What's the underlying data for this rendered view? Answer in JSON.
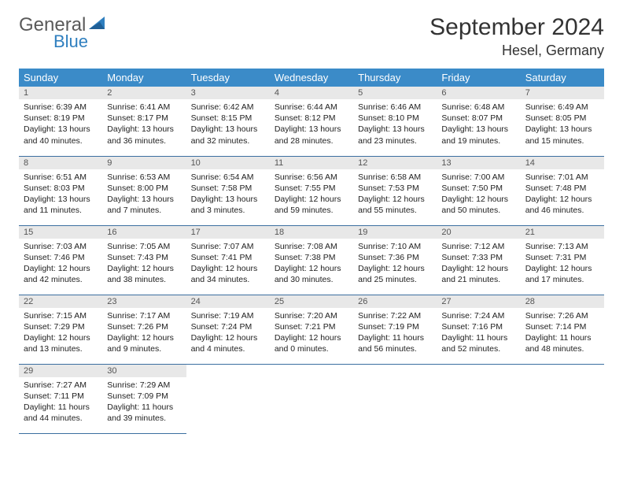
{
  "logo": {
    "word1": "General",
    "word2": "Blue"
  },
  "title": "September 2024",
  "location": "Hesel, Germany",
  "colors": {
    "header_bg": "#3b8bc8",
    "header_text": "#ffffff",
    "daynum_bg": "#e8e8e8",
    "daynum_text": "#555555",
    "row_border": "#3b6fa0",
    "logo_gray": "#5a5a5a",
    "logo_blue": "#2f7fbf"
  },
  "weekdays": [
    "Sunday",
    "Monday",
    "Tuesday",
    "Wednesday",
    "Thursday",
    "Friday",
    "Saturday"
  ],
  "weeks": [
    [
      {
        "n": "1",
        "sr": "Sunrise: 6:39 AM",
        "ss": "Sunset: 8:19 PM",
        "d1": "Daylight: 13 hours",
        "d2": "and 40 minutes."
      },
      {
        "n": "2",
        "sr": "Sunrise: 6:41 AM",
        "ss": "Sunset: 8:17 PM",
        "d1": "Daylight: 13 hours",
        "d2": "and 36 minutes."
      },
      {
        "n": "3",
        "sr": "Sunrise: 6:42 AM",
        "ss": "Sunset: 8:15 PM",
        "d1": "Daylight: 13 hours",
        "d2": "and 32 minutes."
      },
      {
        "n": "4",
        "sr": "Sunrise: 6:44 AM",
        "ss": "Sunset: 8:12 PM",
        "d1": "Daylight: 13 hours",
        "d2": "and 28 minutes."
      },
      {
        "n": "5",
        "sr": "Sunrise: 6:46 AM",
        "ss": "Sunset: 8:10 PM",
        "d1": "Daylight: 13 hours",
        "d2": "and 23 minutes."
      },
      {
        "n": "6",
        "sr": "Sunrise: 6:48 AM",
        "ss": "Sunset: 8:07 PM",
        "d1": "Daylight: 13 hours",
        "d2": "and 19 minutes."
      },
      {
        "n": "7",
        "sr": "Sunrise: 6:49 AM",
        "ss": "Sunset: 8:05 PM",
        "d1": "Daylight: 13 hours",
        "d2": "and 15 minutes."
      }
    ],
    [
      {
        "n": "8",
        "sr": "Sunrise: 6:51 AM",
        "ss": "Sunset: 8:03 PM",
        "d1": "Daylight: 13 hours",
        "d2": "and 11 minutes."
      },
      {
        "n": "9",
        "sr": "Sunrise: 6:53 AM",
        "ss": "Sunset: 8:00 PM",
        "d1": "Daylight: 13 hours",
        "d2": "and 7 minutes."
      },
      {
        "n": "10",
        "sr": "Sunrise: 6:54 AM",
        "ss": "Sunset: 7:58 PM",
        "d1": "Daylight: 13 hours",
        "d2": "and 3 minutes."
      },
      {
        "n": "11",
        "sr": "Sunrise: 6:56 AM",
        "ss": "Sunset: 7:55 PM",
        "d1": "Daylight: 12 hours",
        "d2": "and 59 minutes."
      },
      {
        "n": "12",
        "sr": "Sunrise: 6:58 AM",
        "ss": "Sunset: 7:53 PM",
        "d1": "Daylight: 12 hours",
        "d2": "and 55 minutes."
      },
      {
        "n": "13",
        "sr": "Sunrise: 7:00 AM",
        "ss": "Sunset: 7:50 PM",
        "d1": "Daylight: 12 hours",
        "d2": "and 50 minutes."
      },
      {
        "n": "14",
        "sr": "Sunrise: 7:01 AM",
        "ss": "Sunset: 7:48 PM",
        "d1": "Daylight: 12 hours",
        "d2": "and 46 minutes."
      }
    ],
    [
      {
        "n": "15",
        "sr": "Sunrise: 7:03 AM",
        "ss": "Sunset: 7:46 PM",
        "d1": "Daylight: 12 hours",
        "d2": "and 42 minutes."
      },
      {
        "n": "16",
        "sr": "Sunrise: 7:05 AM",
        "ss": "Sunset: 7:43 PM",
        "d1": "Daylight: 12 hours",
        "d2": "and 38 minutes."
      },
      {
        "n": "17",
        "sr": "Sunrise: 7:07 AM",
        "ss": "Sunset: 7:41 PM",
        "d1": "Daylight: 12 hours",
        "d2": "and 34 minutes."
      },
      {
        "n": "18",
        "sr": "Sunrise: 7:08 AM",
        "ss": "Sunset: 7:38 PM",
        "d1": "Daylight: 12 hours",
        "d2": "and 30 minutes."
      },
      {
        "n": "19",
        "sr": "Sunrise: 7:10 AM",
        "ss": "Sunset: 7:36 PM",
        "d1": "Daylight: 12 hours",
        "d2": "and 25 minutes."
      },
      {
        "n": "20",
        "sr": "Sunrise: 7:12 AM",
        "ss": "Sunset: 7:33 PM",
        "d1": "Daylight: 12 hours",
        "d2": "and 21 minutes."
      },
      {
        "n": "21",
        "sr": "Sunrise: 7:13 AM",
        "ss": "Sunset: 7:31 PM",
        "d1": "Daylight: 12 hours",
        "d2": "and 17 minutes."
      }
    ],
    [
      {
        "n": "22",
        "sr": "Sunrise: 7:15 AM",
        "ss": "Sunset: 7:29 PM",
        "d1": "Daylight: 12 hours",
        "d2": "and 13 minutes."
      },
      {
        "n": "23",
        "sr": "Sunrise: 7:17 AM",
        "ss": "Sunset: 7:26 PM",
        "d1": "Daylight: 12 hours",
        "d2": "and 9 minutes."
      },
      {
        "n": "24",
        "sr": "Sunrise: 7:19 AM",
        "ss": "Sunset: 7:24 PM",
        "d1": "Daylight: 12 hours",
        "d2": "and 4 minutes."
      },
      {
        "n": "25",
        "sr": "Sunrise: 7:20 AM",
        "ss": "Sunset: 7:21 PM",
        "d1": "Daylight: 12 hours",
        "d2": "and 0 minutes."
      },
      {
        "n": "26",
        "sr": "Sunrise: 7:22 AM",
        "ss": "Sunset: 7:19 PM",
        "d1": "Daylight: 11 hours",
        "d2": "and 56 minutes."
      },
      {
        "n": "27",
        "sr": "Sunrise: 7:24 AM",
        "ss": "Sunset: 7:16 PM",
        "d1": "Daylight: 11 hours",
        "d2": "and 52 minutes."
      },
      {
        "n": "28",
        "sr": "Sunrise: 7:26 AM",
        "ss": "Sunset: 7:14 PM",
        "d1": "Daylight: 11 hours",
        "d2": "and 48 minutes."
      }
    ],
    [
      {
        "n": "29",
        "sr": "Sunrise: 7:27 AM",
        "ss": "Sunset: 7:11 PM",
        "d1": "Daylight: 11 hours",
        "d2": "and 44 minutes."
      },
      {
        "n": "30",
        "sr": "Sunrise: 7:29 AM",
        "ss": "Sunset: 7:09 PM",
        "d1": "Daylight: 11 hours",
        "d2": "and 39 minutes."
      },
      null,
      null,
      null,
      null,
      null
    ]
  ]
}
